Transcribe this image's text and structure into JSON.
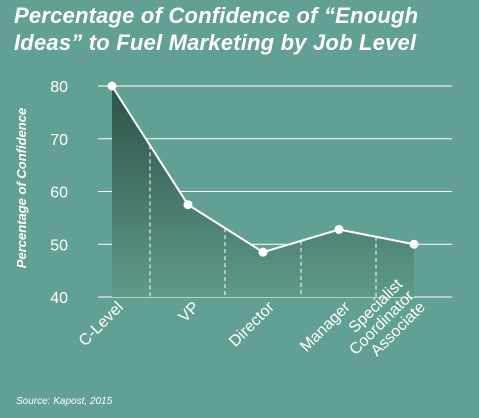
{
  "title": "Percentage of Confidence of “Enough Ideas” to Fuel Marketing by Job Level",
  "source": "Source: Kapost, 2015",
  "colors": {
    "background": "#63a094",
    "fill_top": "#2e5247",
    "fill_bottom": "#5e9a8d",
    "line": "#ffffff"
  },
  "chart_data": {
    "type": "area",
    "title": "Percentage of Confidence of “Enough Ideas” to Fuel Marketing by Job Level",
    "ylabel": "Percentage of Confidence",
    "xlabel": "",
    "ylim": [
      40,
      80
    ],
    "yticks": [
      40,
      50,
      60,
      70,
      80
    ],
    "grid": true,
    "categories": [
      "C-Level",
      "VP",
      "Director",
      "Manager",
      "Specialist Coordinator Associate"
    ],
    "values": [
      80,
      57.5,
      48.5,
      52.8,
      50
    ]
  }
}
